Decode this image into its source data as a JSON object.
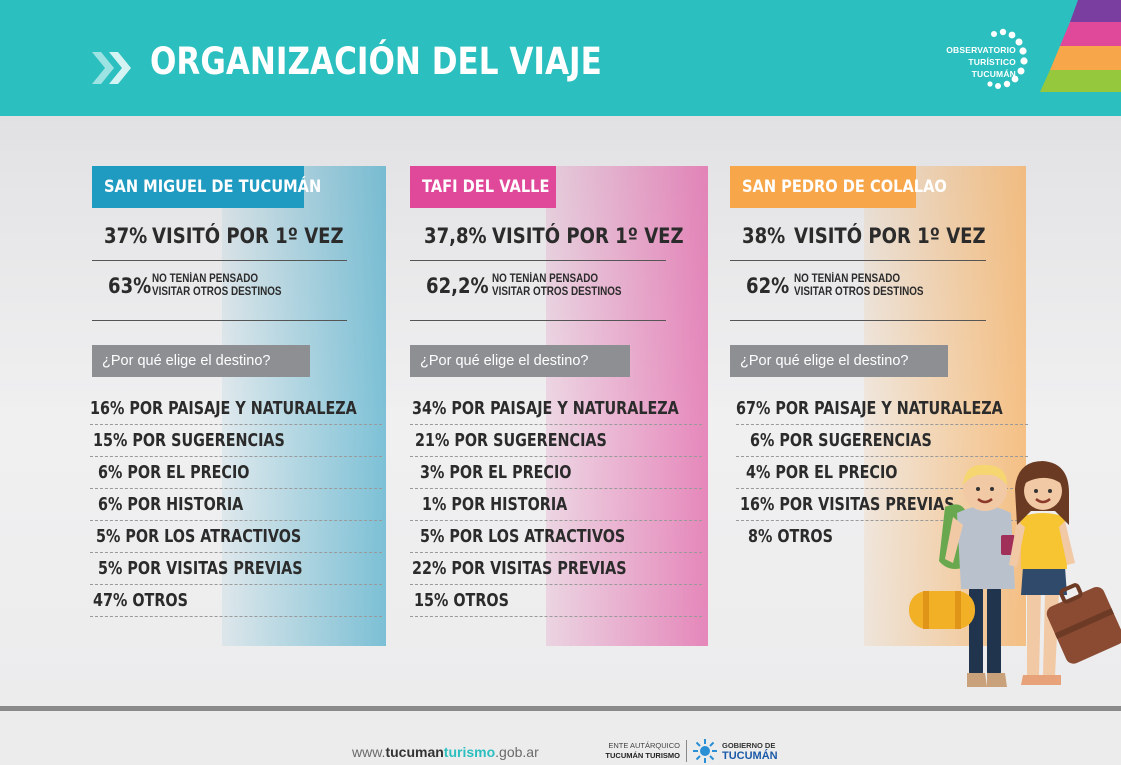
{
  "header": {
    "title": "ORGANIZACIÓN DEL VIAJE",
    "logo_lines": [
      "OBSERVATORIO",
      "TURÍSTICO",
      "TUCUMÁN"
    ]
  },
  "colors": {
    "header": "#2cbfbf",
    "col1": "#1f9ac0",
    "col2": "#e0489a",
    "col3": "#f7a64a"
  },
  "columns": [
    {
      "name": "SAN MIGUEL DE TUCUMÁN",
      "stat1_value": "37%",
      "stat1_label": "VISITÓ POR 1º VEZ",
      "stat2_value": "63%",
      "stat2_label_line1": "NO TENÍAN PENSADO",
      "stat2_label_line2": "VISITAR OTROS DESTINOS",
      "question": "¿Por qué elige el destino?",
      "reasons": [
        "16% POR PAISAJE Y NATURALEZA",
        "15% POR SUGERENCIAS",
        "6% POR EL PRECIO",
        "6% POR HISTORIA",
        "5% POR LOS ATRACTIVOS",
        "5% POR VISITAS PREVIAS",
        "47% OTROS"
      ]
    },
    {
      "name": "TAFI DEL VALLE",
      "stat1_value": "37,8%",
      "stat1_label": "VISITÓ POR 1º VEZ",
      "stat2_value": "62,2%",
      "stat2_label_line1": "NO TENÍAN PENSADO",
      "stat2_label_line2": "VISITAR OTROS DESTINOS",
      "question": "¿Por qué elige el destino?",
      "reasons": [
        "34% POR PAISAJE Y NATURALEZA",
        "21% POR SUGERENCIAS",
        "3% POR EL PRECIO",
        "1% POR HISTORIA",
        "5% POR LOS ATRACTIVOS",
        "22% POR VISITAS PREVIAS",
        "15% OTROS"
      ]
    },
    {
      "name": "SAN PEDRO DE COLALAO",
      "stat1_value": "38%",
      "stat1_label": "VISITÓ POR 1º VEZ",
      "stat2_value": "62%",
      "stat2_label_line1": "NO TENÍAN PENSADO",
      "stat2_label_line2": "VISITAR OTROS DESTINOS",
      "question": "¿Por qué elige el destino?",
      "reasons": [
        "67% POR PAISAJE Y NATURALEZA",
        "6% POR SUGERENCIAS",
        "4% POR EL PRECIO",
        "16% POR VISITAS PREVIAS",
        "8% OTROS"
      ]
    }
  ],
  "footer": {
    "url_prefix": "www.",
    "url_brand1": "tucuman",
    "url_brand2": "turismo",
    "url_suffix": ".gob.ar",
    "ente_line1": "ENTE AUTÁRQUICO",
    "ente_line2": "TUCUMÁN TURISMO",
    "gob_line1": "GOBIERNO DE",
    "gob_line2": "TUCUMÁN"
  },
  "icons": {
    "header": "double-chevron-right-icon",
    "logo": "dot-ring-logo-icon",
    "footer": "sun-logo-icon",
    "illustration": "travelers-illustration-icon"
  }
}
